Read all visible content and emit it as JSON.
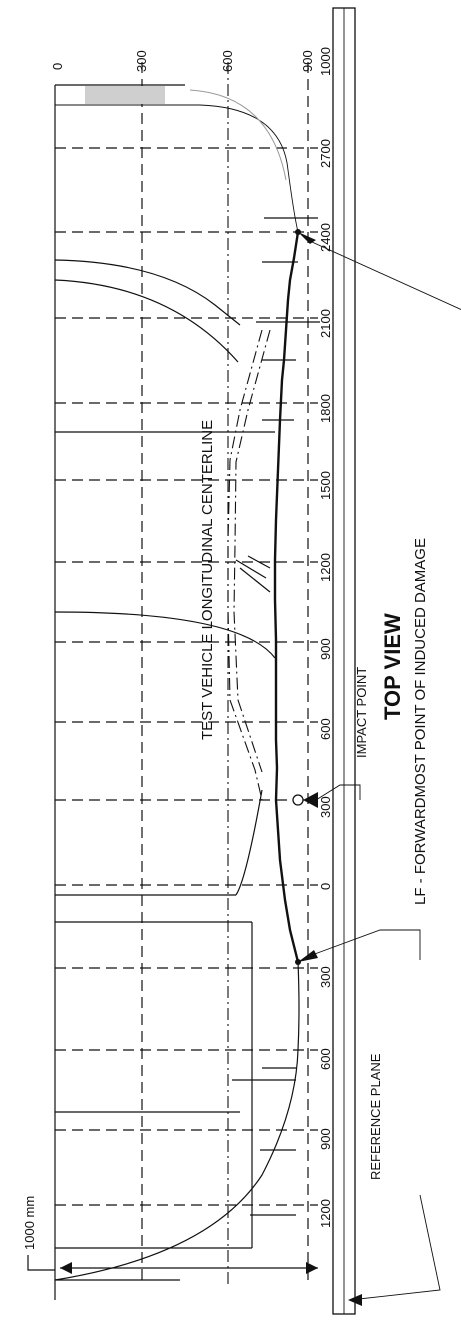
{
  "labels": {
    "centerline": "TEST VEHICLE LONGITUDINAL CENTERLINE",
    "top_view": "TOP VIEW",
    "impact_point": "IMPACT POINT",
    "lf_damage": "LF - FORWARDMOST POINT OF INDUCED DAMAGE",
    "reference_plane": "REFERENCE PLANE",
    "width_dim": "1000 mm"
  },
  "lateral_ticks": [
    "0",
    "300",
    "600",
    "900",
    "1000"
  ],
  "longitudinal_ticks": [
    "2700",
    "2400",
    "2100",
    "1800",
    "1500",
    "1200",
    "900",
    "600",
    "300",
    "0",
    "300",
    "600",
    "900",
    "1200"
  ]
}
